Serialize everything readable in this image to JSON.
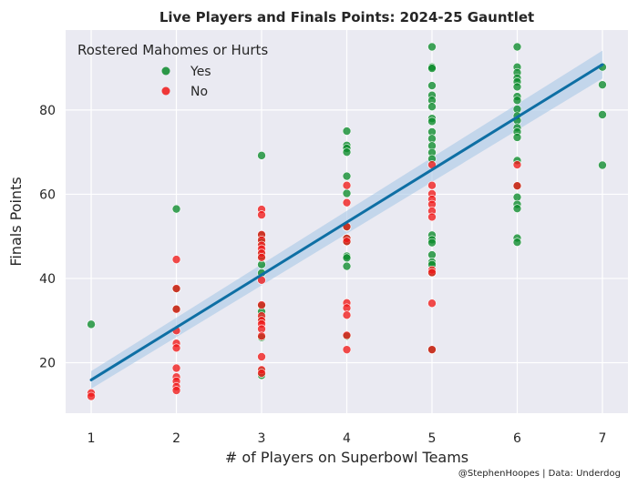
{
  "chart_data": {
    "type": "scatter",
    "title": "Live Players and Finals Points: 2024-25 Gauntlet",
    "xlabel": "# of Players on Superbowl Teams",
    "ylabel": "Finals Points",
    "credit": "@StephenHoopes | Data: Underdog",
    "xlim": [
      0.7,
      7.3
    ],
    "ylim": [
      8,
      99
    ],
    "xticks": [
      1,
      2,
      3,
      4,
      5,
      6,
      7
    ],
    "yticks": [
      20,
      40,
      60,
      80
    ],
    "grid": true,
    "legend": {
      "title": "Rostered Mahomes or Hurts",
      "position": "top-left",
      "entries": [
        {
          "label": "Yes",
          "color": "#0a8a2a"
        },
        {
          "label": "No",
          "color": "#f01818"
        }
      ]
    },
    "regression": {
      "x": [
        1,
        7
      ],
      "y": [
        15.9,
        90.8
      ],
      "ci_lower": [
        13.8,
        87.5
      ],
      "ci_upper": [
        18.0,
        94.1
      ],
      "color": "#0e6fa4",
      "band_color": "#a8c8e6"
    },
    "series": [
      {
        "name": "Yes",
        "color": "#0a8a2a",
        "points": [
          [
            1,
            29.1
          ],
          [
            2,
            56.5
          ],
          [
            2,
            37.5
          ],
          [
            2,
            32.8
          ],
          [
            3,
            69.2
          ],
          [
            3,
            50.3
          ],
          [
            3,
            49.4
          ],
          [
            3,
            48.5
          ],
          [
            3,
            46.0
          ],
          [
            3,
            45.3
          ],
          [
            3,
            43.3
          ],
          [
            3,
            41.3
          ],
          [
            3,
            33.5
          ],
          [
            3,
            32.1
          ],
          [
            3,
            30.5
          ],
          [
            3,
            26.0
          ],
          [
            3,
            18.0
          ],
          [
            3,
            17.0
          ],
          [
            4,
            75.0
          ],
          [
            4,
            71.6
          ],
          [
            4,
            70.9
          ],
          [
            4,
            70.0
          ],
          [
            4,
            64.3
          ],
          [
            4,
            60.2
          ],
          [
            4,
            52.2
          ],
          [
            4,
            49.6
          ],
          [
            4,
            48.7
          ],
          [
            4,
            45.3
          ],
          [
            4,
            44.9
          ],
          [
            4,
            42.9
          ],
          [
            4,
            26.3
          ],
          [
            5,
            95.0
          ],
          [
            5,
            90.2
          ],
          [
            5,
            89.9
          ],
          [
            5,
            85.8
          ],
          [
            5,
            83.5
          ],
          [
            5,
            82.3
          ],
          [
            5,
            80.8
          ],
          [
            5,
            78.0
          ],
          [
            5,
            77.3
          ],
          [
            5,
            74.8
          ],
          [
            5,
            73.2
          ],
          [
            5,
            71.5
          ],
          [
            5,
            69.9
          ],
          [
            5,
            68.4
          ],
          [
            5,
            50.3
          ],
          [
            5,
            49.2
          ],
          [
            5,
            48.5
          ],
          [
            5,
            45.6
          ],
          [
            5,
            43.9
          ],
          [
            5,
            43.3
          ],
          [
            5,
            41.3
          ],
          [
            5,
            23.1
          ],
          [
            6,
            95.0
          ],
          [
            6,
            90.2
          ],
          [
            6,
            88.9
          ],
          [
            6,
            87.6
          ],
          [
            6,
            86.7
          ],
          [
            6,
            85.5
          ],
          [
            6,
            83.2
          ],
          [
            6,
            82.3
          ],
          [
            6,
            80.2
          ],
          [
            6,
            78.6
          ],
          [
            6,
            77.5
          ],
          [
            6,
            75.8
          ],
          [
            6,
            74.8
          ],
          [
            6,
            73.5
          ],
          [
            6,
            68.0
          ],
          [
            6,
            62.0
          ],
          [
            6,
            59.3
          ],
          [
            6,
            57.6
          ],
          [
            6,
            56.6
          ],
          [
            6,
            49.6
          ],
          [
            6,
            48.6
          ],
          [
            7,
            90.2
          ],
          [
            7,
            86.0
          ],
          [
            7,
            78.9
          ],
          [
            7,
            66.9
          ]
        ]
      },
      {
        "name": "No",
        "color": "#f01818",
        "points": [
          [
            1,
            12.8
          ],
          [
            1,
            12.0
          ],
          [
            2,
            44.5
          ],
          [
            2,
            37.6
          ],
          [
            2,
            32.7
          ],
          [
            2,
            27.6
          ],
          [
            2,
            24.6
          ],
          [
            2,
            23.5
          ],
          [
            2,
            18.7
          ],
          [
            2,
            16.6
          ],
          [
            2,
            15.6
          ],
          [
            2,
            14.3
          ],
          [
            2,
            13.4
          ],
          [
            3,
            56.4
          ],
          [
            3,
            55.1
          ],
          [
            3,
            50.4
          ],
          [
            3,
            49.1
          ],
          [
            3,
            47.9
          ],
          [
            3,
            47.0
          ],
          [
            3,
            46.0
          ],
          [
            3,
            45.0
          ],
          [
            3,
            39.6
          ],
          [
            3,
            33.7
          ],
          [
            3,
            31.1
          ],
          [
            3,
            30.0
          ],
          [
            3,
            29.2
          ],
          [
            3,
            28.0
          ],
          [
            3,
            26.3
          ],
          [
            3,
            21.4
          ],
          [
            3,
            18.3
          ],
          [
            3,
            17.5
          ],
          [
            4,
            62.1
          ],
          [
            4,
            58.0
          ],
          [
            4,
            52.3
          ],
          [
            4,
            49.5
          ],
          [
            4,
            48.8
          ],
          [
            4,
            34.2
          ],
          [
            4,
            33.0
          ],
          [
            4,
            31.3
          ],
          [
            4,
            26.5
          ],
          [
            4,
            23.1
          ],
          [
            5,
            67.0
          ],
          [
            5,
            62.1
          ],
          [
            5,
            60.1
          ],
          [
            5,
            58.8
          ],
          [
            5,
            57.6
          ],
          [
            5,
            56.0
          ],
          [
            5,
            54.6
          ],
          [
            5,
            42.0
          ],
          [
            5,
            41.4
          ],
          [
            5,
            34.1
          ],
          [
            5,
            23.1
          ],
          [
            6,
            67.0
          ],
          [
            6,
            62.0
          ]
        ]
      }
    ]
  }
}
